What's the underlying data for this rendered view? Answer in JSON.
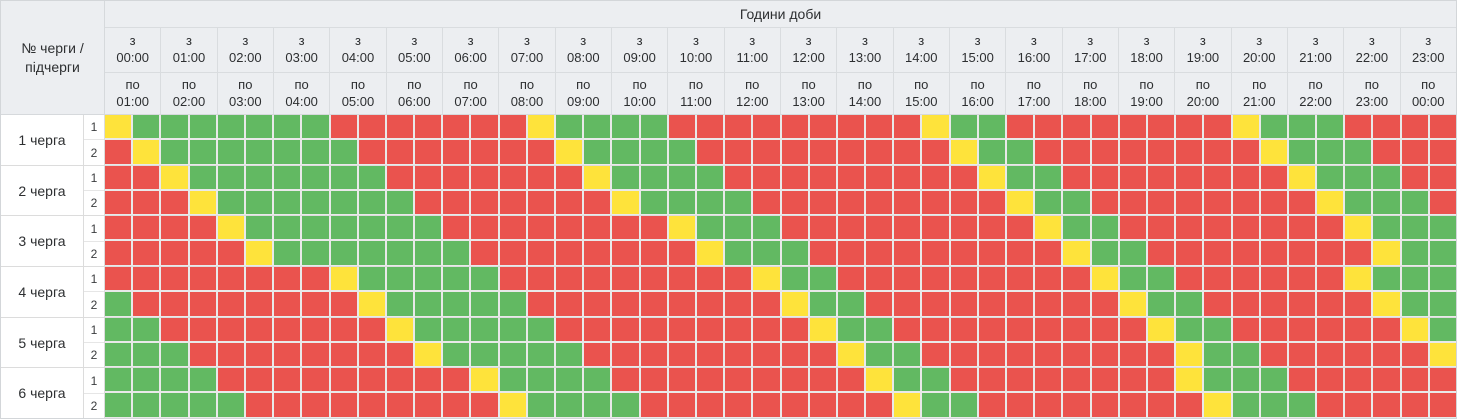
{
  "header": {
    "corner": "№ черги / підчерги",
    "title": "Години доби",
    "from_prefix": "з",
    "to_prefix": "по",
    "hours": [
      {
        "from": "00:00",
        "to": "01:00"
      },
      {
        "from": "01:00",
        "to": "02:00"
      },
      {
        "from": "02:00",
        "to": "03:00"
      },
      {
        "from": "03:00",
        "to": "04:00"
      },
      {
        "from": "04:00",
        "to": "05:00"
      },
      {
        "from": "05:00",
        "to": "06:00"
      },
      {
        "from": "06:00",
        "to": "07:00"
      },
      {
        "from": "07:00",
        "to": "08:00"
      },
      {
        "from": "08:00",
        "to": "09:00"
      },
      {
        "from": "09:00",
        "to": "10:00"
      },
      {
        "from": "10:00",
        "to": "11:00"
      },
      {
        "from": "11:00",
        "to": "12:00"
      },
      {
        "from": "12:00",
        "to": "13:00"
      },
      {
        "from": "13:00",
        "to": "14:00"
      },
      {
        "from": "14:00",
        "to": "15:00"
      },
      {
        "from": "15:00",
        "to": "16:00"
      },
      {
        "from": "16:00",
        "to": "17:00"
      },
      {
        "from": "17:00",
        "to": "18:00"
      },
      {
        "from": "18:00",
        "to": "19:00"
      },
      {
        "from": "19:00",
        "to": "20:00"
      },
      {
        "from": "20:00",
        "to": "21:00"
      },
      {
        "from": "21:00",
        "to": "22:00"
      },
      {
        "from": "22:00",
        "to": "23:00"
      },
      {
        "from": "23:00",
        "to": "00:00"
      }
    ]
  },
  "colors": {
    "on": "#62b962",
    "off": "#ea534e",
    "maybe": "#fee33b",
    "header_bg": "#eceef1",
    "border": "#d6d9dc"
  },
  "cell_states": {
    "G": "power-on",
    "R": "power-off",
    "Y": "possible-outage"
  },
  "cell_resolution_minutes": 30,
  "queues": [
    {
      "label": "1 черга",
      "subqueues": [
        {
          "label": "1",
          "cells": "YGGGGGGGRRRRRRRYGGGGRRRRRRRRRYGGRRRRRRRRYGGGRRRR"
        },
        {
          "label": "2",
          "cells": "RYGGGGGGGRRRRRRRYGGGGRRRRRRRRRYGGRRRRRRRRYGGGRRR"
        }
      ]
    },
    {
      "label": "2 черга",
      "subqueues": [
        {
          "label": "1",
          "cells": "RRYGGGGGGGRRRRRRRYGGGGRRRRRRRRRYGGRRRRRRRRYGGGRR"
        },
        {
          "label": "2",
          "cells": "RRRYGGGGGGGRRRRRRRYGGGGRRRRRRRRRYGGRRRRRRRRYGGGR"
        }
      ]
    },
    {
      "label": "3 черга",
      "subqueues": [
        {
          "label": "1",
          "cells": "RRRRYGGGGGGGRRRRRRRRYGGGRRRRRRRRRYGGRRRRRRRRYGGG"
        },
        {
          "label": "2",
          "cells": "RRRRRYGGGGGGGRRRRRRRRYGGGRRRRRRRRRYGGRRRRRRRRYGG"
        }
      ]
    },
    {
      "label": "4 черга",
      "subqueues": [
        {
          "label": "1",
          "cells": "RRRRRRRRYGGGGGRRRRRRRRRYGGRRRRRRRRRYGGRRRRRRYGGG"
        },
        {
          "label": "2",
          "cells": "GRRRRRRRRYGGGGGRRRRRRRRRYGGRRRRRRRRRYGGRRRRRRYGG"
        }
      ]
    },
    {
      "label": "5 черга",
      "subqueues": [
        {
          "label": "1",
          "cells": "GGRRRRRRRRYGGGGGRRRRRRRRRYGGRRRRRRRRRYGGRRRRRRYG"
        },
        {
          "label": "2",
          "cells": "GGGRRRRRRRRYGGGGGRRRRRRRRRYGGRRRRRRRRRYGGRRRRRRY"
        }
      ]
    },
    {
      "label": "6 черга",
      "subqueues": [
        {
          "label": "1",
          "cells": "GGGGRRRRRRRRRYGGGGRRRRRRRRRYGGRRRRRRRRYGGGRRRRRR"
        },
        {
          "label": "2",
          "cells": "GGGGGRRRRRRRRRYGGGGRRRRRRRRRYGGRRRRRRRRYGGGRRRRR"
        }
      ]
    }
  ]
}
